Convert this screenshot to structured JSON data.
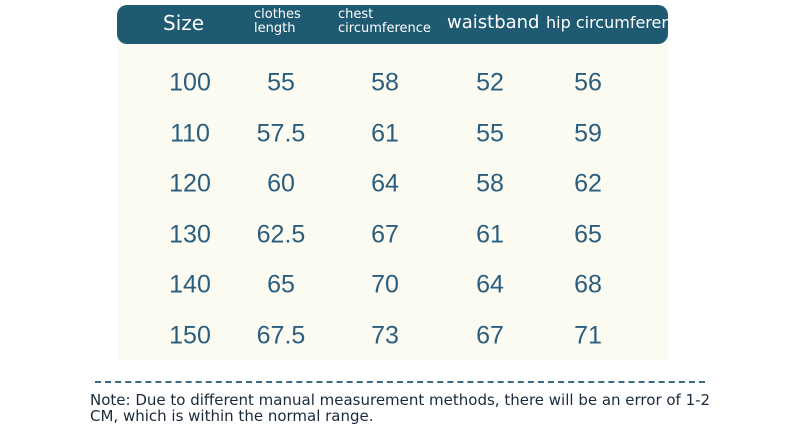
{
  "table": {
    "headers": [
      "Size",
      "clothes length",
      "chest circumference",
      "waistband",
      "hip circumferen"
    ],
    "rows": [
      [
        100,
        55,
        58,
        52,
        56
      ],
      [
        110,
        57.5,
        61,
        55,
        59
      ],
      [
        120,
        60,
        64,
        58,
        62
      ],
      [
        130,
        62.5,
        67,
        61,
        65
      ],
      [
        140,
        65,
        70,
        64,
        68
      ],
      [
        150,
        67.5,
        73,
        67,
        71
      ]
    ]
  },
  "note": "Note: Due to different manual measurement methods, there will be an error of 1-2 CM, which is within the normal range."
}
